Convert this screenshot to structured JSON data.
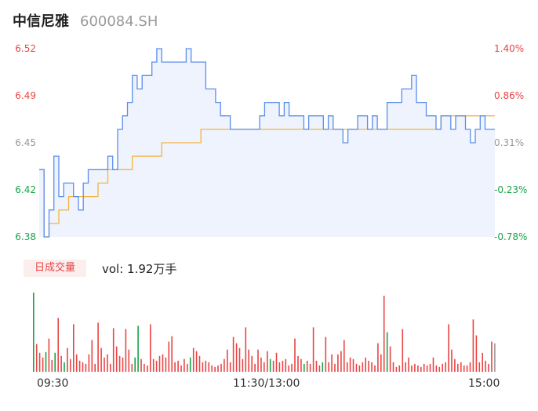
{
  "header": {
    "name": "中信尼雅",
    "code": "600084.SH"
  },
  "colors": {
    "price": "#5b8def",
    "avg": "#f3b53f",
    "up": "#e84545",
    "down": "#1aa34a",
    "flat": "#999999",
    "fill": "#eef3fd"
  },
  "volume": {
    "badge": "日成交量",
    "label": "vol: 1.92万手"
  },
  "chart_data": {
    "type": "line",
    "y_left_ticks": [
      "6.52",
      "6.49",
      "6.45",
      "6.42",
      "6.38"
    ],
    "y_right_ticks": [
      "1.40%",
      "0.86%",
      "0.31%",
      "-0.23%",
      "-0.78%"
    ],
    "x_ticks": [
      "09:30",
      "11:30/13:00",
      "15:00"
    ],
    "ylim": [
      6.38,
      6.52
    ],
    "prev_close": 6.43,
    "series": [
      {
        "values": [
          6.43,
          6.38,
          6.4,
          6.44,
          6.41,
          6.42,
          6.42,
          6.41,
          6.4,
          6.42,
          6.43,
          6.43,
          6.43,
          6.43,
          6.44,
          6.43,
          6.46,
          6.47,
          6.48,
          6.5,
          6.49,
          6.5,
          6.5,
          6.51,
          6.52,
          6.51,
          6.51,
          6.51,
          6.51,
          6.51,
          6.52,
          6.51,
          6.51,
          6.51,
          6.49,
          6.49,
          6.48,
          6.47,
          6.47,
          6.46,
          6.46,
          6.46,
          6.46,
          6.46,
          6.46,
          6.47,
          6.48,
          6.48,
          6.48,
          6.47,
          6.48,
          6.47,
          6.47,
          6.47,
          6.46,
          6.47,
          6.47,
          6.47,
          6.46,
          6.47,
          6.46,
          6.46,
          6.45,
          6.46,
          6.46,
          6.47,
          6.47,
          6.46,
          6.47,
          6.46,
          6.46,
          6.48,
          6.48,
          6.48,
          6.49,
          6.49,
          6.5,
          6.48,
          6.48,
          6.47,
          6.47,
          6.46,
          6.47,
          6.47,
          6.46,
          6.47,
          6.47,
          6.46,
          6.45,
          6.46,
          6.47,
          6.46,
          6.46,
          6.46
        ]
      },
      {
        "values": [
          6.43,
          6.38,
          6.39,
          6.39,
          6.4,
          6.4,
          6.41,
          6.41,
          6.41,
          6.41,
          6.41,
          6.41,
          6.42,
          6.42,
          6.43,
          6.43,
          6.43,
          6.43,
          6.43,
          6.44,
          6.44,
          6.44,
          6.44,
          6.44,
          6.44,
          6.45,
          6.45,
          6.45,
          6.45,
          6.45,
          6.45,
          6.45,
          6.45,
          6.46,
          6.46,
          6.46,
          6.46,
          6.46,
          6.46,
          6.46,
          6.46,
          6.46,
          6.46,
          6.46,
          6.46,
          6.46,
          6.46,
          6.46,
          6.46,
          6.46,
          6.46,
          6.46,
          6.46,
          6.46,
          6.46,
          6.46,
          6.46,
          6.46,
          6.46,
          6.46,
          6.46,
          6.46,
          6.46,
          6.46,
          6.46,
          6.46,
          6.46,
          6.46,
          6.46,
          6.46,
          6.46,
          6.46,
          6.46,
          6.46,
          6.46,
          6.46,
          6.46,
          6.46,
          6.46,
          6.46,
          6.46,
          6.46,
          6.47,
          6.47,
          6.47,
          6.47,
          6.47,
          6.47,
          6.47,
          6.47,
          6.47,
          6.47,
          6.47,
          6.47
        ]
      }
    ],
    "volume_bars": [
      {
        "v": 100,
        "c": "down"
      },
      {
        "v": 35,
        "c": "up"
      },
      {
        "v": 24,
        "c": "up"
      },
      {
        "v": 18,
        "c": "up"
      },
      {
        "v": 25,
        "c": "down"
      },
      {
        "v": 42,
        "c": "up"
      },
      {
        "v": 15,
        "c": "up"
      },
      {
        "v": 24,
        "c": "down"
      },
      {
        "v": 68,
        "c": "up"
      },
      {
        "v": 20,
        "c": "up"
      },
      {
        "v": 12,
        "c": "down"
      },
      {
        "v": 30,
        "c": "up"
      },
      {
        "v": 16,
        "c": "up"
      },
      {
        "v": 60,
        "c": "up"
      },
      {
        "v": 22,
        "c": "up"
      },
      {
        "v": 14,
        "c": "up"
      },
      {
        "v": 12,
        "c": "up"
      },
      {
        "v": 10,
        "c": "up"
      },
      {
        "v": 22,
        "c": "up"
      },
      {
        "v": 40,
        "c": "up"
      },
      {
        "v": 10,
        "c": "up"
      },
      {
        "v": 62,
        "c": "up"
      },
      {
        "v": 30,
        "c": "up"
      },
      {
        "v": 18,
        "c": "up"
      },
      {
        "v": 22,
        "c": "up"
      },
      {
        "v": 10,
        "c": "up"
      },
      {
        "v": 55,
        "c": "up"
      },
      {
        "v": 32,
        "c": "up"
      },
      {
        "v": 20,
        "c": "up"
      },
      {
        "v": 18,
        "c": "up"
      },
      {
        "v": 54,
        "c": "up"
      },
      {
        "v": 28,
        "c": "up"
      },
      {
        "v": 10,
        "c": "up"
      },
      {
        "v": 18,
        "c": "down"
      },
      {
        "v": 58,
        "c": "down"
      },
      {
        "v": 16,
        "c": "up"
      },
      {
        "v": 10,
        "c": "up"
      },
      {
        "v": 8,
        "c": "up"
      },
      {
        "v": 60,
        "c": "up"
      },
      {
        "v": 16,
        "c": "up"
      },
      {
        "v": 14,
        "c": "up"
      },
      {
        "v": 20,
        "c": "up"
      },
      {
        "v": 22,
        "c": "up"
      },
      {
        "v": 18,
        "c": "up"
      },
      {
        "v": 38,
        "c": "up"
      },
      {
        "v": 45,
        "c": "up"
      },
      {
        "v": 12,
        "c": "up"
      },
      {
        "v": 14,
        "c": "up"
      },
      {
        "v": 8,
        "c": "up"
      },
      {
        "v": 16,
        "c": "up"
      },
      {
        "v": 10,
        "c": "up"
      },
      {
        "v": 18,
        "c": "down"
      },
      {
        "v": 30,
        "c": "up"
      },
      {
        "v": 26,
        "c": "up"
      },
      {
        "v": 20,
        "c": "up"
      },
      {
        "v": 12,
        "c": "up"
      },
      {
        "v": 14,
        "c": "up"
      },
      {
        "v": 12,
        "c": "up"
      },
      {
        "v": 8,
        "c": "up"
      },
      {
        "v": 6,
        "c": "up"
      },
      {
        "v": 8,
        "c": "up"
      },
      {
        "v": 10,
        "c": "up"
      },
      {
        "v": 16,
        "c": "up"
      },
      {
        "v": 28,
        "c": "up"
      },
      {
        "v": 12,
        "c": "up"
      },
      {
        "v": 44,
        "c": "up"
      },
      {
        "v": 36,
        "c": "up"
      },
      {
        "v": 30,
        "c": "up"
      },
      {
        "v": 16,
        "c": "up"
      },
      {
        "v": 56,
        "c": "up"
      },
      {
        "v": 28,
        "c": "up"
      },
      {
        "v": 20,
        "c": "up"
      },
      {
        "v": 10,
        "c": "up"
      },
      {
        "v": 28,
        "c": "up"
      },
      {
        "v": 18,
        "c": "up"
      },
      {
        "v": 12,
        "c": "up"
      },
      {
        "v": 26,
        "c": "up"
      },
      {
        "v": 16,
        "c": "down"
      },
      {
        "v": 14,
        "c": "up"
      },
      {
        "v": 24,
        "c": "up"
      },
      {
        "v": 12,
        "c": "up"
      },
      {
        "v": 14,
        "c": "up"
      },
      {
        "v": 16,
        "c": "up"
      },
      {
        "v": 8,
        "c": "up"
      },
      {
        "v": 10,
        "c": "up"
      },
      {
        "v": 42,
        "c": "up"
      },
      {
        "v": 20,
        "c": "up"
      },
      {
        "v": 16,
        "c": "up"
      },
      {
        "v": 10,
        "c": "down"
      },
      {
        "v": 14,
        "c": "up"
      },
      {
        "v": 10,
        "c": "up"
      },
      {
        "v": 56,
        "c": "up"
      },
      {
        "v": 14,
        "c": "up"
      },
      {
        "v": 8,
        "c": "up"
      },
      {
        "v": 12,
        "c": "down"
      },
      {
        "v": 44,
        "c": "up"
      },
      {
        "v": 12,
        "c": "up"
      },
      {
        "v": 22,
        "c": "up"
      },
      {
        "v": 10,
        "c": "up"
      },
      {
        "v": 22,
        "c": "up"
      },
      {
        "v": 26,
        "c": "up"
      },
      {
        "v": 40,
        "c": "up"
      },
      {
        "v": 12,
        "c": "up"
      },
      {
        "v": 18,
        "c": "up"
      },
      {
        "v": 16,
        "c": "up"
      },
      {
        "v": 10,
        "c": "up"
      },
      {
        "v": 8,
        "c": "up"
      },
      {
        "v": 12,
        "c": "up"
      },
      {
        "v": 18,
        "c": "up"
      },
      {
        "v": 14,
        "c": "up"
      },
      {
        "v": 12,
        "c": "up"
      },
      {
        "v": 8,
        "c": "up"
      },
      {
        "v": 36,
        "c": "up"
      },
      {
        "v": 22,
        "c": "up"
      },
      {
        "v": 96,
        "c": "up"
      },
      {
        "v": 50,
        "c": "down"
      },
      {
        "v": 32,
        "c": "up"
      },
      {
        "v": 12,
        "c": "up"
      },
      {
        "v": 6,
        "c": "up"
      },
      {
        "v": 8,
        "c": "up"
      },
      {
        "v": 54,
        "c": "up"
      },
      {
        "v": 12,
        "c": "up"
      },
      {
        "v": 18,
        "c": "up"
      },
      {
        "v": 8,
        "c": "up"
      },
      {
        "v": 10,
        "c": "up"
      },
      {
        "v": 8,
        "c": "up"
      },
      {
        "v": 6,
        "c": "up"
      },
      {
        "v": 10,
        "c": "up"
      },
      {
        "v": 8,
        "c": "up"
      },
      {
        "v": 10,
        "c": "up"
      },
      {
        "v": 18,
        "c": "up"
      },
      {
        "v": 8,
        "c": "up"
      },
      {
        "v": 6,
        "c": "up"
      },
      {
        "v": 10,
        "c": "up"
      },
      {
        "v": 12,
        "c": "up"
      },
      {
        "v": 60,
        "c": "up"
      },
      {
        "v": 28,
        "c": "up"
      },
      {
        "v": 16,
        "c": "up"
      },
      {
        "v": 10,
        "c": "up"
      },
      {
        "v": 12,
        "c": "up"
      },
      {
        "v": 8,
        "c": "up"
      },
      {
        "v": 8,
        "c": "up"
      },
      {
        "v": 12,
        "c": "up"
      },
      {
        "v": 66,
        "c": "up"
      },
      {
        "v": 46,
        "c": "up"
      },
      {
        "v": 12,
        "c": "up"
      },
      {
        "v": 24,
        "c": "up"
      },
      {
        "v": 14,
        "c": "up"
      },
      {
        "v": 10,
        "c": "up"
      },
      {
        "v": 38,
        "c": "up"
      },
      {
        "v": 36,
        "c": "flat"
      }
    ]
  }
}
